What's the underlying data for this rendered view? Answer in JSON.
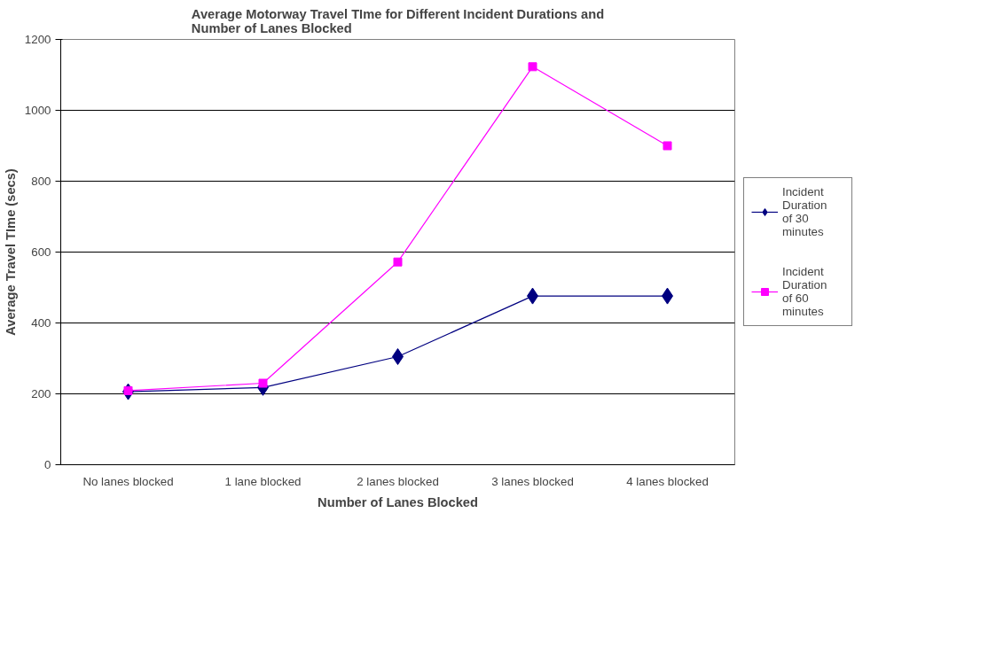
{
  "chart_data": {
    "type": "line",
    "title": "Average Motorway Travel TIme for Different Incident Durations and Number of Lanes Blocked",
    "xlabel": "Number of Lanes Blocked",
    "ylabel": "Average Travel TIme (secs)",
    "categories": [
      "No lanes blocked",
      "1 lane blocked",
      "2 lanes blocked",
      "3 lanes blocked",
      "4 lanes blocked"
    ],
    "series": [
      {
        "name": "Incident Duration of 30 minutes",
        "color": "#000080",
        "marker": "diamond",
        "values": [
          206,
          218,
          305,
          476,
          476
        ]
      },
      {
        "name": "Incident Duration of 60 minutes",
        "color": "#ff00ff",
        "marker": "square",
        "values": [
          209,
          230,
          572,
          1123,
          900
        ]
      }
    ],
    "ylim": [
      0,
      1200
    ],
    "yticks": [
      0,
      200,
      400,
      600,
      800,
      1000,
      1200
    ],
    "grid": "y",
    "legend": "right",
    "line_style": "solid"
  }
}
